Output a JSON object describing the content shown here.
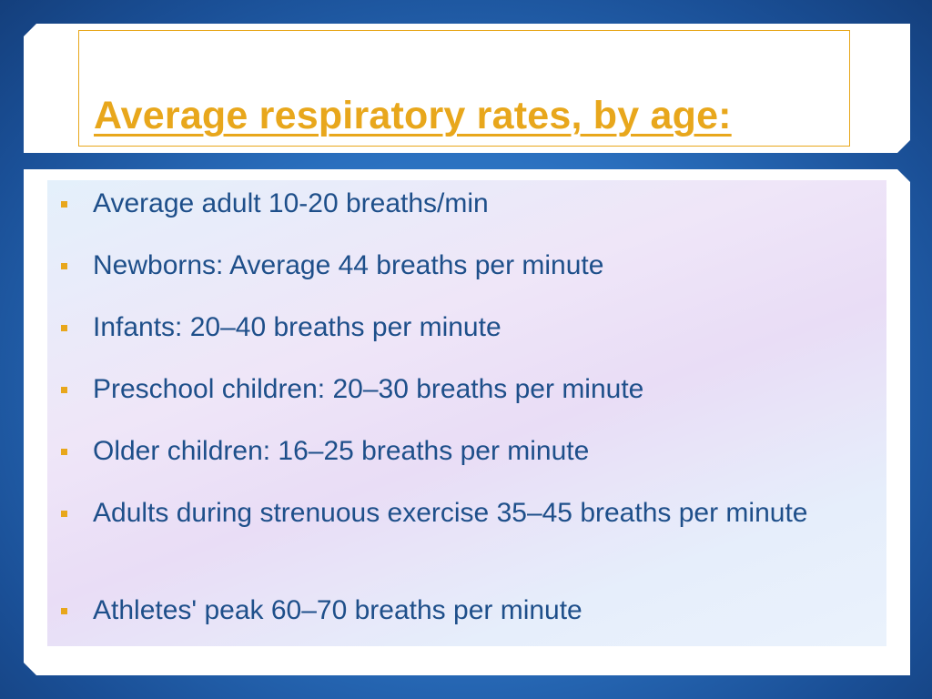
{
  "slide": {
    "title": "Average respiratory rates, by age:",
    "bullets": [
      "Average adult 10-20 breaths/min",
      "Newborns: Average 44 breaths per minute",
      "Infants: 20–40 breaths per minute",
      "Preschool children: 20–30 breaths per minute",
      "Older children: 16–25 breaths per minute",
      "Adults during strenuous exercise 35–45 breaths per minute",
      "Athletes' peak 60–70 breaths per minute"
    ],
    "colors": {
      "title": "#e8a71c",
      "text": "#1e4f8a",
      "bullet_marker": "#e8a71c",
      "background": "#2a6fbe"
    }
  }
}
